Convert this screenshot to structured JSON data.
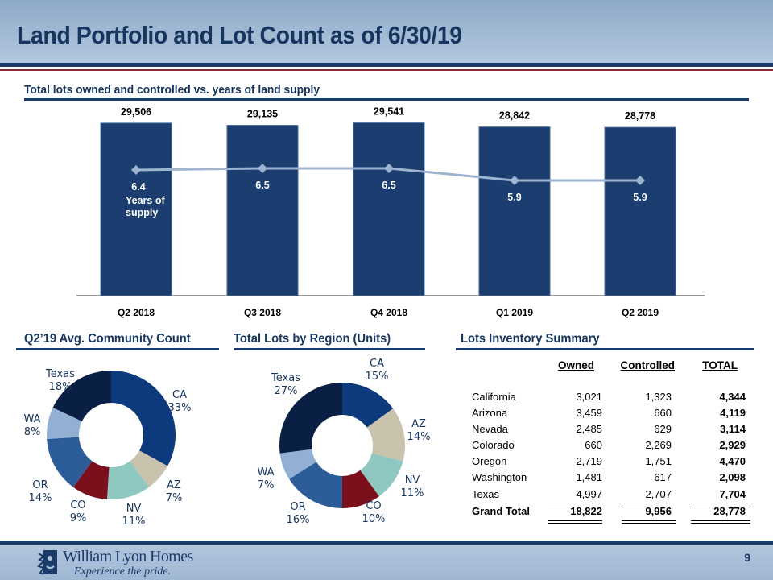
{
  "header": {
    "title": "Land Portfolio and Lot Count as of 6/30/19"
  },
  "sections": {
    "top_chart_title": "Total lots owned and controlled vs. years of land supply",
    "community_title": "Q2’19 Avg. Community Count",
    "region_title": "Total Lots by Region (Units)",
    "inventory_title": "Lots Inventory Summary"
  },
  "colors": {
    "navy": "#1a3a6a",
    "bar": "#1b3d6f",
    "line": "#9db4d0",
    "slices": {
      "CA": "#0d3a7c",
      "AZ": "#c9c3ad",
      "NV": "#8fc8c0",
      "CO": "#7b0f1c",
      "OR": "#2d5d98",
      "WA": "#92b0d4",
      "Texas": "#0a1f44"
    }
  },
  "chart_data": [
    {
      "type": "bar",
      "title": "Total lots owned and controlled vs. years of land supply",
      "categories": [
        "Q2 2018",
        "Q3 2018",
        "Q4 2018",
        "Q1 2019",
        "Q2 2019"
      ],
      "series": [
        {
          "name": "Total lots",
          "type": "bar",
          "values": [
            29506,
            29135,
            29541,
            28842,
            28778
          ],
          "labels": [
            "29,506",
            "29,135",
            "29,541",
            "28,842",
            "28,778"
          ]
        },
        {
          "name": "Years of supply",
          "type": "line",
          "values": [
            6.4,
            6.5,
            6.5,
            5.9,
            5.9
          ],
          "labels": [
            "6.4",
            "6.5",
            "6.5",
            "5.9",
            "5.9"
          ]
        }
      ],
      "annotation": "Years of supply",
      "xlabel": "",
      "ylabel": "",
      "ylim": [
        0,
        32000
      ],
      "y2lim": [
        0,
        10
      ],
      "grid": false
    },
    {
      "type": "pie",
      "variant": "doughnut",
      "title": "Q2’19 Avg. Community Count",
      "slices": [
        {
          "label": "CA",
          "value": 33,
          "text": "33%"
        },
        {
          "label": "AZ",
          "value": 7,
          "text": "7%"
        },
        {
          "label": "NV",
          "value": 11,
          "text": "11%"
        },
        {
          "label": "CO",
          "value": 9,
          "text": "9%"
        },
        {
          "label": "OR",
          "value": 14,
          "text": "14%"
        },
        {
          "label": "WA",
          "value": 8,
          "text": "8%"
        },
        {
          "label": "Texas",
          "value": 18,
          "text": "18%"
        }
      ]
    },
    {
      "type": "pie",
      "variant": "doughnut",
      "title": "Total Lots by Region (Units)",
      "slices": [
        {
          "label": "CA",
          "value": 15,
          "text": "15%"
        },
        {
          "label": "AZ",
          "value": 14,
          "text": "14%"
        },
        {
          "label": "NV",
          "value": 11,
          "text": "11%"
        },
        {
          "label": "CO",
          "value": 10,
          "text": "10%"
        },
        {
          "label": "OR",
          "value": 16,
          "text": "16%"
        },
        {
          "label": "WA",
          "value": 7,
          "text": "7%"
        },
        {
          "label": "Texas",
          "value": 27,
          "text": "27%"
        }
      ]
    },
    {
      "type": "table",
      "title": "Lots Inventory Summary",
      "columns": [
        "",
        "Owned",
        "Controlled",
        "TOTAL"
      ],
      "rows": [
        [
          "California",
          "3,021",
          "1,323",
          "4,344"
        ],
        [
          "Arizona",
          "3,459",
          "660",
          "4,119"
        ],
        [
          "Nevada",
          "2,485",
          "629",
          "3,114"
        ],
        [
          "Colorado",
          "660",
          "2,269",
          "2,929"
        ],
        [
          "Oregon",
          "2,719",
          "1,751",
          "4,470"
        ],
        [
          "Washington",
          "1,481",
          "617",
          "2,098"
        ],
        [
          "Texas",
          "4,997",
          "2,707",
          "7,704"
        ]
      ],
      "total_row": [
        "Grand Total",
        "18,822",
        "9,956",
        "28,778"
      ]
    }
  ],
  "footer": {
    "company": "William Lyon Homes",
    "tagline": "Experience the pride.",
    "page_number": "9"
  }
}
